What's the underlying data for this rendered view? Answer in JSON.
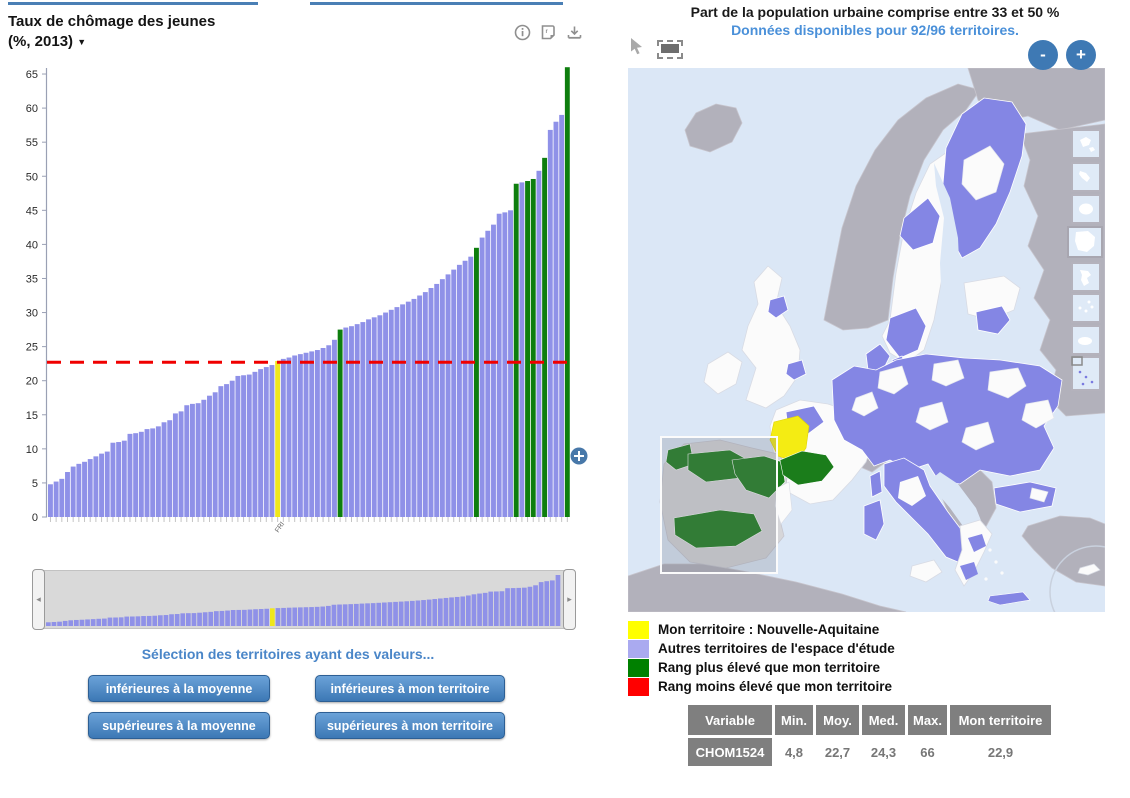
{
  "left_panel": {
    "title_line1": "Taux de chômage des jeunes",
    "title_line2": "(%, 2013)",
    "dropdown_arrow": "▼",
    "selection_heading": "Sélection des territoires ayant des valeurs...",
    "buttons": [
      "inférieures à la moyenne",
      "inférieures à mon territoire",
      "supérieures à la moyenne",
      "supérieures à mon territoire"
    ]
  },
  "chart_data": {
    "type": "bar",
    "title": "Taux de chômage des jeunes (%, 2013)",
    "ylabel": "",
    "ylim": [
      0,
      65
    ],
    "ytick_step": 5,
    "average_line": 22.7,
    "values": [
      4.8,
      5.2,
      5.6,
      6.6,
      7.4,
      7.8,
      8.1,
      8.5,
      8.9,
      9.3,
      9.6,
      10.9,
      11.0,
      11.2,
      12.2,
      12.3,
      12.5,
      12.9,
      13.0,
      13.3,
      13.9,
      14.2,
      15.2,
      15.5,
      16.4,
      16.6,
      16.7,
      17.2,
      17.8,
      18.3,
      19.2,
      19.5,
      20.0,
      20.7,
      20.8,
      20.9,
      21.3,
      21.7,
      22.0,
      22.3,
      22.9,
      23.2,
      23.4,
      23.7,
      23.9,
      24.1,
      24.3,
      24.5,
      24.8,
      25.2,
      26.0,
      27.5,
      27.8,
      28.0,
      28.3,
      28.6,
      29.0,
      29.3,
      29.6,
      30.0,
      30.4,
      30.8,
      31.2,
      31.6,
      32.0,
      32.5,
      33.0,
      33.6,
      34.2,
      34.9,
      35.6,
      36.3,
      37.0,
      37.6,
      38.2,
      39.5,
      41.0,
      42.0,
      42.9,
      44.5,
      44.7,
      45.0,
      48.9,
      49.1,
      49.3,
      49.6,
      50.8,
      52.7,
      56.8,
      58.0,
      59.0,
      66.0
    ],
    "highlight": {
      "my_territory_index": 40,
      "my_territory_value": 22.9,
      "my_territory_label": "FRI",
      "higher_rank_indices": [
        51,
        75,
        82,
        84,
        85,
        87,
        91
      ]
    },
    "colors": {
      "bar": "#8f91e8",
      "my_territory": "#f0e71c",
      "higher_rank": "#0e7e0e",
      "average_line": "#f00000"
    }
  },
  "right_panel": {
    "map_title": "Part de la population urbaine comprise entre 33 et 50 %",
    "map_subtitle": "Données disponibles pour 92/96 territoires.",
    "zoom_out_label": "-",
    "zoom_in_label": "+",
    "legend": [
      {
        "color": "#ffff00",
        "label": "Mon territoire : Nouvelle-Aquitaine"
      },
      {
        "color": "#aaaaf0",
        "label": "Autres territoires de l'espace d'étude"
      },
      {
        "color": "#008000",
        "label": "Rang plus élevé que mon territoire"
      },
      {
        "color": "#ff0000",
        "label": "Rang moins élevé que mon territoire"
      }
    ],
    "table": {
      "headers": [
        "Variable",
        "Min.",
        "Moy.",
        "Med.",
        "Max.",
        "Mon territoire"
      ],
      "rows": [
        [
          "CHOM1524",
          "4,8",
          "22,7",
          "24,3",
          "66",
          "22,9"
        ]
      ]
    }
  }
}
